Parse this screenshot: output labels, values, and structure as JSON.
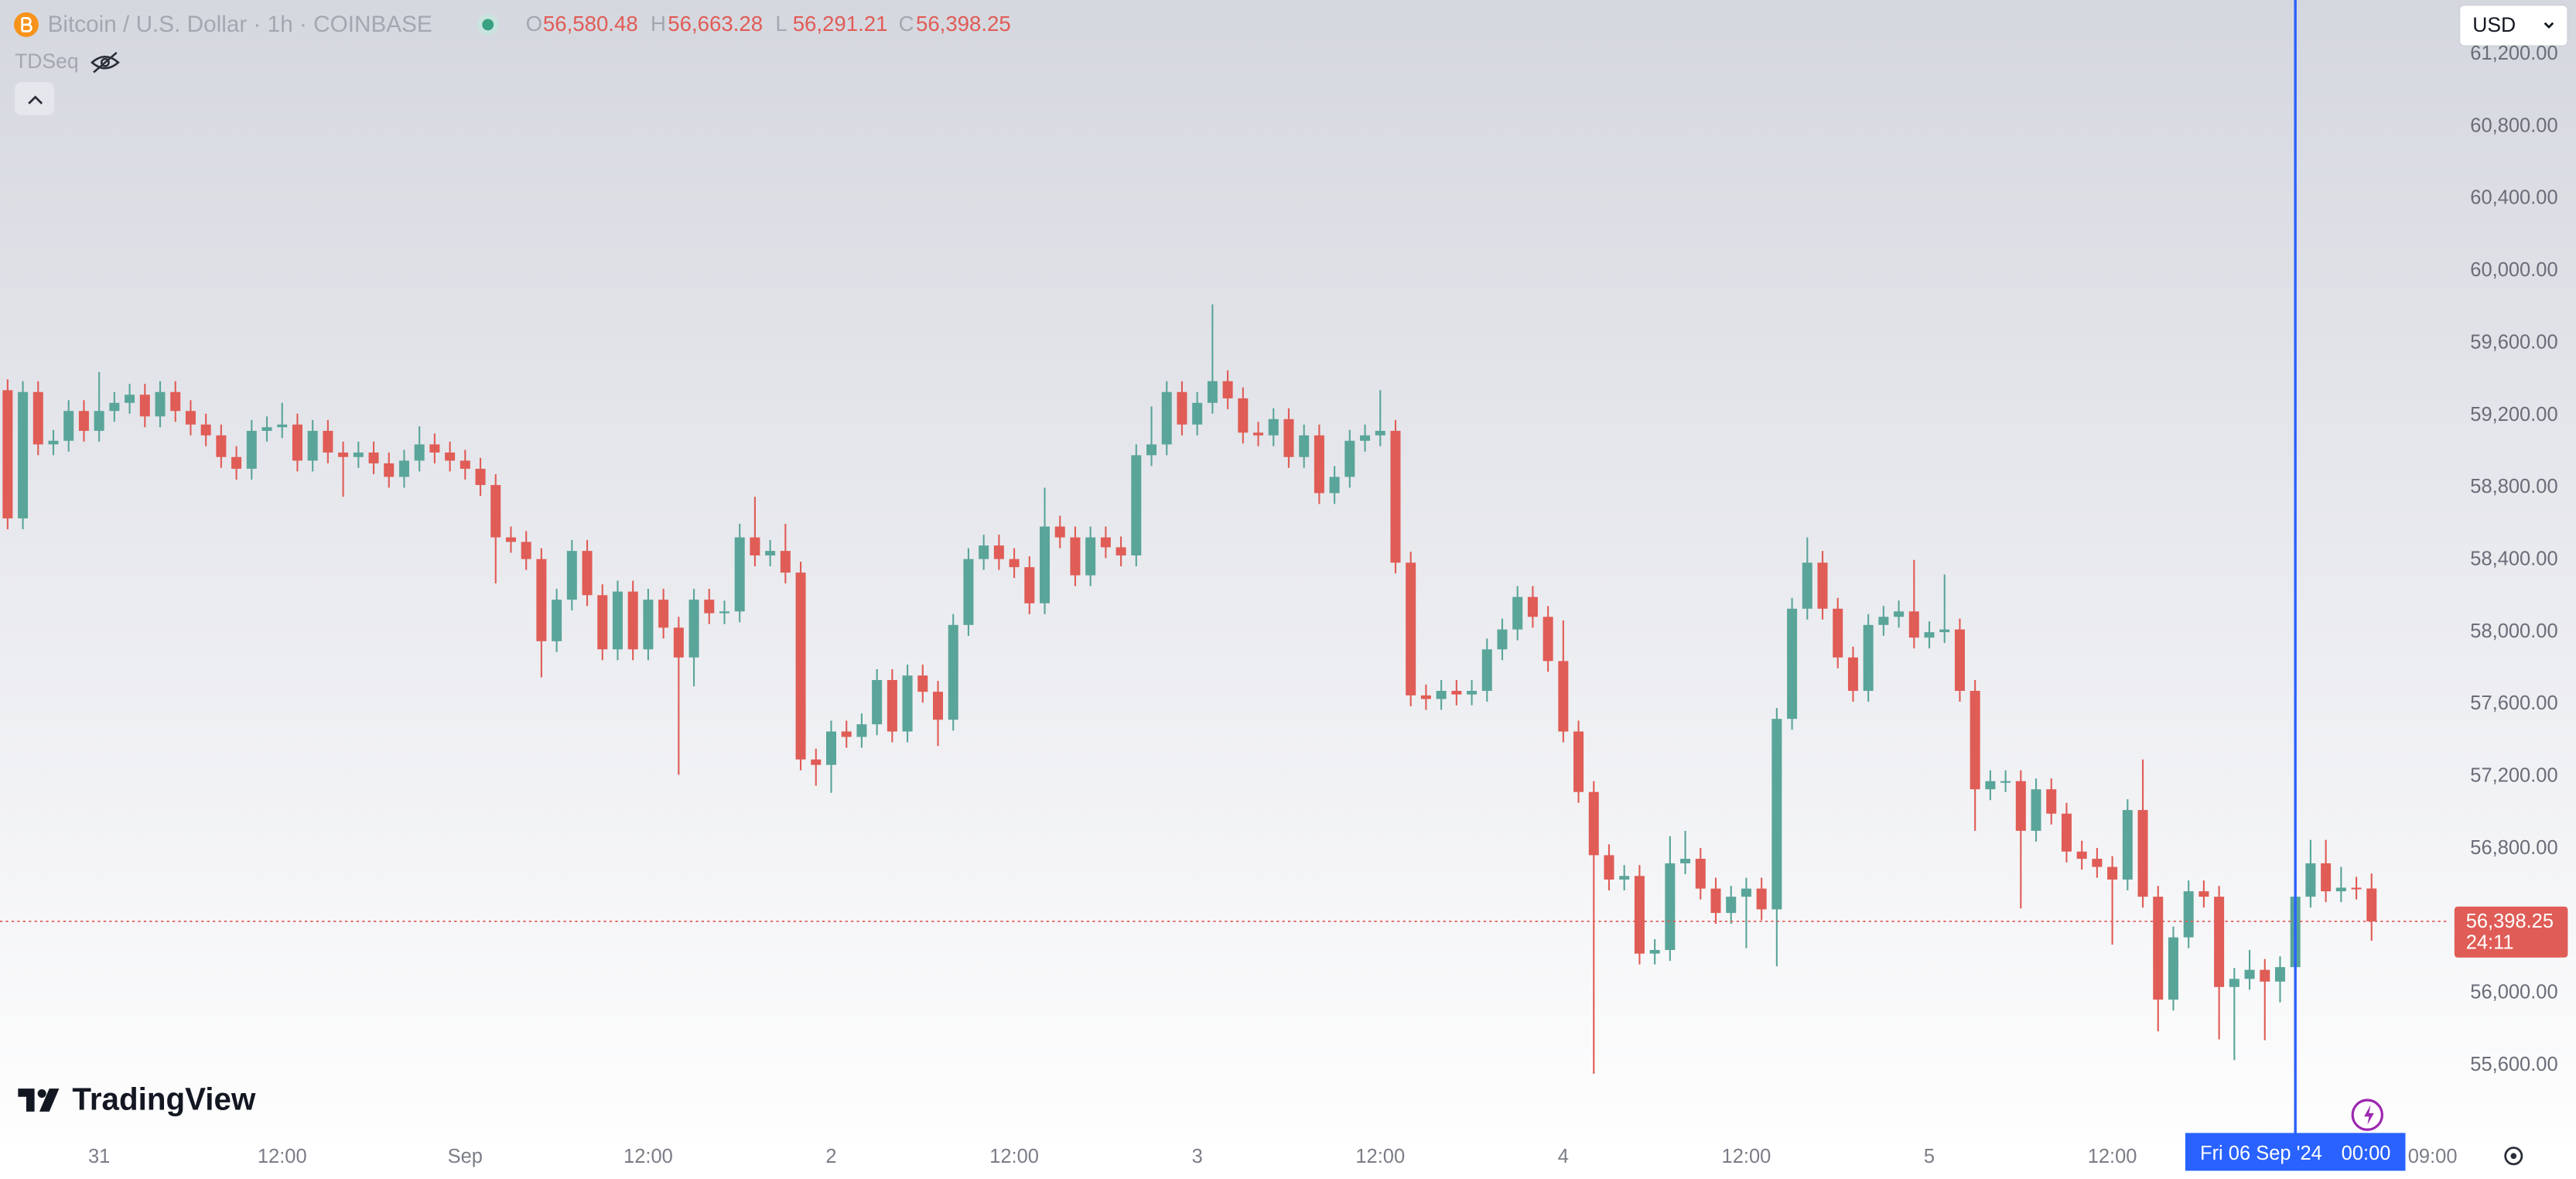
{
  "chart_data": {
    "type": "candlestick",
    "header": {
      "symbol": "Bitcoin / U.S. Dollar · 1h · COINBASE",
      "ohlc": [
        {
          "key": "O",
          "value": "56,580.48"
        },
        {
          "key": "H",
          "value": "56,663.28"
        },
        {
          "key": "L",
          "value": "56,291.21"
        },
        {
          "key": "C",
          "value": "56,398.25"
        }
      ]
    },
    "indicator": "TDSeq",
    "currency": "USD",
    "logo": "TradingView",
    "up_color": "#5aa59a",
    "down_color": "#e05c56",
    "open": [
      59340,
      58630,
      59330,
      59040,
      59060,
      59225,
      59115,
      59225,
      59270,
      59315,
      59195,
      59330,
      59225,
      59150,
      59090,
      58970,
      58905,
      59115,
      59135,
      59150,
      58950,
      59115,
      58995,
      58970,
      58995,
      58935,
      58860,
      58950,
      59040,
      58995,
      58950,
      58905,
      58815,
      58525,
      58500,
      58405,
      57950,
      58180,
      58450,
      58205,
      57905,
      58225,
      57905,
      58180,
      58025,
      57860,
      58180,
      58105,
      58115,
      58525,
      58425,
      58450,
      58330,
      57295,
      57265,
      57450,
      57420,
      57490,
      57735,
      57450,
      57760,
      57670,
      57515,
      58040,
      58405,
      58480,
      58405,
      58360,
      58160,
      58585,
      58525,
      58315,
      58525,
      58470,
      58425,
      58980,
      59040,
      59330,
      59150,
      59270,
      59390,
      59295,
      59105,
      59090,
      59180,
      58970,
      59090,
      58770,
      58860,
      59060,
      59090,
      59115,
      58385,
      57650,
      57630,
      57675,
      57655,
      57675,
      57905,
      58015,
      58195,
      58085,
      57840,
      57450,
      57115,
      56765,
      56630,
      56650,
      56220,
      56240,
      56720,
      56745,
      56580,
      56445,
      56535,
      56580,
      56465,
      57520,
      58130,
      58385,
      58130,
      57860,
      57675,
      58040,
      58085,
      58115,
      57970,
      58000,
      58015,
      57675,
      57130,
      57175,
      57175,
      56900,
      57130,
      56995,
      56785,
      56745,
      56700,
      56630,
      57015,
      56535,
      55965,
      56310,
      56565,
      56535,
      56035,
      56080,
      56130,
      56065,
      56145,
      56535,
      56720,
      56565,
      56585,
      56580.48
    ],
    "high": [
      59400,
      59390,
      59390,
      59120,
      59285,
      59285,
      59440,
      59330,
      59375,
      59375,
      59390,
      59390,
      59285,
      59210,
      59150,
      59030,
      59175,
      59195,
      59270,
      59210,
      59175,
      59175,
      59055,
      59055,
      59055,
      58995,
      59010,
      59140,
      59100,
      59055,
      59010,
      58965,
      58875,
      58585,
      58560,
      58465,
      58240,
      58510,
      58510,
      58265,
      58285,
      58285,
      58240,
      58240,
      58085,
      58240,
      58240,
      58175,
      58600,
      58750,
      58510,
      58600,
      58390,
      57355,
      57510,
      57510,
      57550,
      57795,
      57795,
      57820,
      57820,
      57730,
      58100,
      58465,
      58540,
      58540,
      58465,
      58420,
      58800,
      58645,
      58585,
      58585,
      58585,
      58530,
      59040,
      59250,
      59390,
      59390,
      59330,
      59815,
      59450,
      59355,
      59165,
      59240,
      59240,
      59150,
      59150,
      58920,
      59120,
      59150,
      59340,
      59175,
      58445,
      57710,
      57735,
      57735,
      57735,
      57965,
      58075,
      58255,
      58255,
      58145,
      58065,
      57510,
      57175,
      56825,
      56710,
      56710,
      56300,
      56870,
      56900,
      56805,
      56640,
      56595,
      56640,
      56640,
      57580,
      58190,
      58525,
      58450,
      58190,
      57920,
      58100,
      58145,
      58175,
      58400,
      58060,
      58320,
      58075,
      57735,
      57235,
      57235,
      57235,
      57190,
      57190,
      57055,
      56845,
      56805,
      56760,
      57075,
      57295,
      56595,
      56370,
      56625,
      56625,
      56595,
      56140,
      56240,
      56190,
      56205,
      56595,
      56850,
      56850,
      56700,
      56645,
      56663.28
    ],
    "low": [
      58570,
      58570,
      58980,
      58980,
      59000,
      59055,
      59055,
      59165,
      59210,
      59135,
      59135,
      59165,
      59090,
      59030,
      58910,
      58845,
      58845,
      59055,
      59075,
      58890,
      58890,
      58935,
      58750,
      58910,
      58875,
      58800,
      58800,
      58890,
      58935,
      58890,
      58845,
      58755,
      58270,
      58440,
      58345,
      57750,
      57890,
      58120,
      58145,
      57845,
      57845,
      57845,
      57845,
      57965,
      57210,
      57700,
      58045,
      58045,
      58055,
      58365,
      58365,
      58270,
      57235,
      57150,
      57110,
      57360,
      57360,
      57430,
      57390,
      57390,
      57610,
      57370,
      57455,
      57980,
      58345,
      58345,
      58300,
      58100,
      58100,
      58465,
      58255,
      58255,
      58410,
      58365,
      58365,
      58920,
      58980,
      59090,
      59090,
      59210,
      59235,
      59045,
      59030,
      59030,
      58910,
      58910,
      58710,
      58710,
      58800,
      59000,
      59030,
      58325,
      57590,
      57570,
      57570,
      57595,
      57595,
      57615,
      57845,
      57955,
      58025,
      57780,
      57390,
      57055,
      55555,
      56570,
      56570,
      56160,
      56160,
      56180,
      56660,
      56520,
      56385,
      56385,
      56250,
      56405,
      56150,
      57460,
      58070,
      58070,
      57800,
      57615,
      57615,
      57980,
      58025,
      57910,
      57910,
      57940,
      57615,
      56900,
      57070,
      57115,
      56470,
      56840,
      56935,
      56725,
      56685,
      56640,
      56270,
      56570,
      56475,
      55790,
      55905,
      56250,
      56475,
      55745,
      55630,
      56020,
      55740,
      55950,
      55950,
      56475,
      56505,
      56505,
      56520,
      56291.21
    ],
    "close": [
      58630,
      59330,
      59040,
      59060,
      59225,
      59115,
      59225,
      59270,
      59315,
      59195,
      59330,
      59225,
      59150,
      59090,
      58970,
      58905,
      59115,
      59135,
      59150,
      58950,
      59115,
      58995,
      58970,
      58995,
      58935,
      58860,
      58950,
      59040,
      58995,
      58950,
      58905,
      58815,
      58525,
      58500,
      58405,
      57950,
      58180,
      58450,
      58205,
      57905,
      58225,
      57905,
      58180,
      58025,
      57860,
      58180,
      58105,
      58115,
      58525,
      58425,
      58450,
      58330,
      57295,
      57265,
      57450,
      57420,
      57490,
      57735,
      57450,
      57760,
      57670,
      57515,
      58040,
      58405,
      58480,
      58405,
      58360,
      58160,
      58585,
      58525,
      58315,
      58525,
      58470,
      58425,
      58980,
      59040,
      59330,
      59150,
      59270,
      59390,
      59295,
      59105,
      59090,
      59180,
      58970,
      59090,
      58770,
      58860,
      59060,
      59090,
      59115,
      58385,
      57650,
      57630,
      57675,
      57655,
      57675,
      57905,
      58015,
      58195,
      58085,
      57840,
      57450,
      57115,
      56765,
      56630,
      56650,
      56220,
      56240,
      56720,
      56745,
      56580,
      56445,
      56535,
      56580,
      56465,
      57520,
      58130,
      58385,
      58130,
      57860,
      57675,
      58040,
      58085,
      58115,
      57970,
      58000,
      58015,
      57675,
      57130,
      57175,
      57175,
      56900,
      57130,
      56995,
      56785,
      56745,
      56700,
      56630,
      57015,
      56535,
      55965,
      56310,
      56565,
      56535,
      56035,
      56080,
      56130,
      56065,
      56145,
      56535,
      56720,
      56565,
      56585,
      56580.48,
      56398.25
    ],
    "xlim": [
      -0.5,
      160
    ],
    "xticks": [
      {
        "value": 6,
        "label": "31"
      },
      {
        "value": 18,
        "label": "12:00"
      },
      {
        "value": 30,
        "label": "Sep"
      },
      {
        "value": 42,
        "label": "12:00"
      },
      {
        "value": 54,
        "label": "2"
      },
      {
        "value": 66,
        "label": "12:00"
      },
      {
        "value": 78,
        "label": "3"
      },
      {
        "value": 90,
        "label": "12:00"
      },
      {
        "value": 102,
        "label": "4"
      },
      {
        "value": 114,
        "label": "12:00"
      },
      {
        "value": 126,
        "label": "5"
      },
      {
        "value": 138,
        "label": "12:00"
      },
      {
        "value": 159,
        "label": "09:00"
      }
    ],
    "ylim": [
      55172,
      61501
    ],
    "yticks": [
      {
        "value": 55600,
        "label": "55,600.00"
      },
      {
        "value": 56000,
        "label": "56,000.00"
      },
      {
        "value": 56400,
        "label": "56,400.00"
      },
      {
        "value": 56800,
        "label": "56,800.00"
      },
      {
        "value": 57200,
        "label": "57,200.00"
      },
      {
        "value": 57600,
        "label": "57,600.00"
      },
      {
        "value": 58000,
        "label": "58,000.00"
      },
      {
        "value": 58400,
        "label": "58,400.00"
      },
      {
        "value": 58800,
        "label": "58,800.00"
      },
      {
        "value": 59200,
        "label": "59,200.00"
      },
      {
        "value": 59600,
        "label": "59,600.00"
      },
      {
        "value": 60000,
        "label": "60,000.00"
      },
      {
        "value": 60400,
        "label": "60,400.00"
      },
      {
        "value": 60800,
        "label": "60,800.00"
      },
      {
        "value": 61200,
        "label": "61,200.00"
      }
    ],
    "grid": false,
    "price_label": {
      "value": 56398.25,
      "label": "56,398.25",
      "countdown": "24:11"
    },
    "crosshair": {
      "index": 150,
      "date": "Fri 06 Sep '24",
      "time": "00:00"
    }
  }
}
